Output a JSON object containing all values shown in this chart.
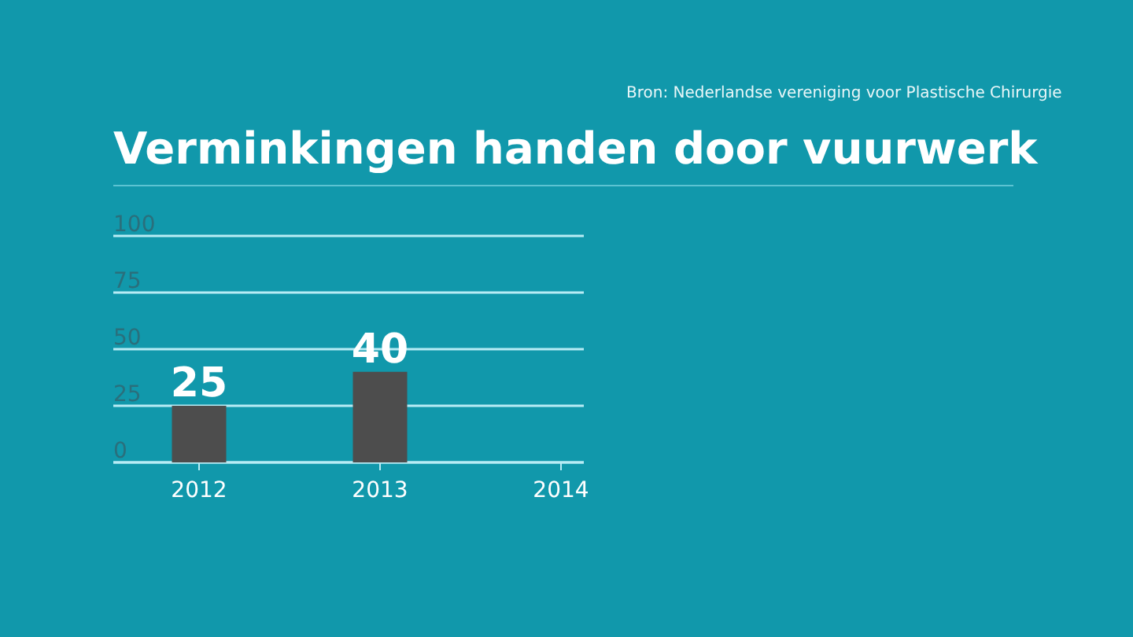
{
  "chart_data": {
    "type": "bar",
    "title": "Verminkingen handen door vuurwerk",
    "annotations": [
      "Bron: Nederlandse vereniging voor Plastische Chirurgie"
    ],
    "categories": [
      "2012",
      "2013",
      "2014"
    ],
    "values": [
      25,
      40,
      null
    ],
    "color": "#4d4d4d",
    "ylim": [
      0,
      100
    ],
    "yticks": [
      0,
      25,
      50,
      75,
      100
    ],
    "grid": "y",
    "data_labels": true
  }
}
